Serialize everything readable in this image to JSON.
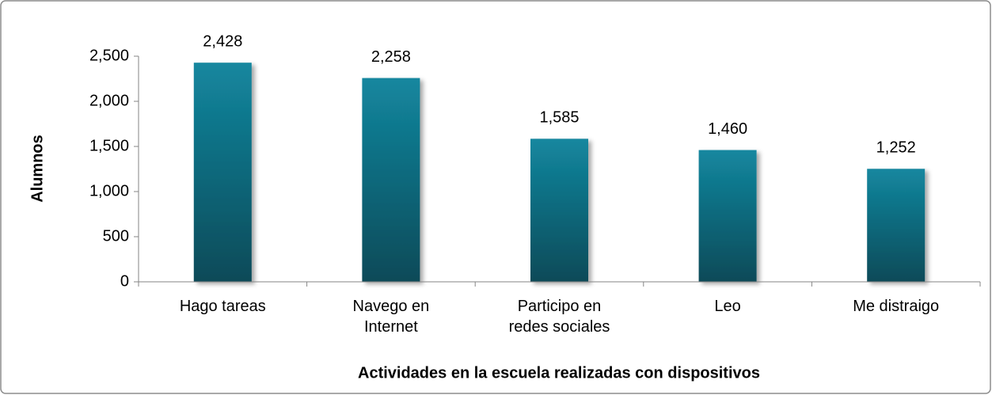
{
  "chart_data": {
    "type": "bar",
    "categories": [
      "Hago tareas",
      "Navego en Internet",
      "Participo en redes sociales",
      "Leo",
      "Me distraigo"
    ],
    "values": [
      2428,
      2258,
      1585,
      1460,
      1252
    ],
    "value_labels": [
      "2,428",
      "2,258",
      "1,585",
      "1,460",
      "1,252"
    ],
    "color": "#0f7d93",
    "xlabel": "Actividades en la escuela realizadas con dispositivos",
    "ylabel": "Alumnos",
    "ylim": [
      0,
      2500
    ],
    "yticks": [
      0,
      500,
      {
        "value": 1000,
        "label": "1,000"
      },
      {
        "value": 1500,
        "label": "1,500"
      },
      {
        "value": 2000,
        "label": "2,000"
      },
      {
        "value": 2500,
        "label": "2,500"
      }
    ]
  }
}
